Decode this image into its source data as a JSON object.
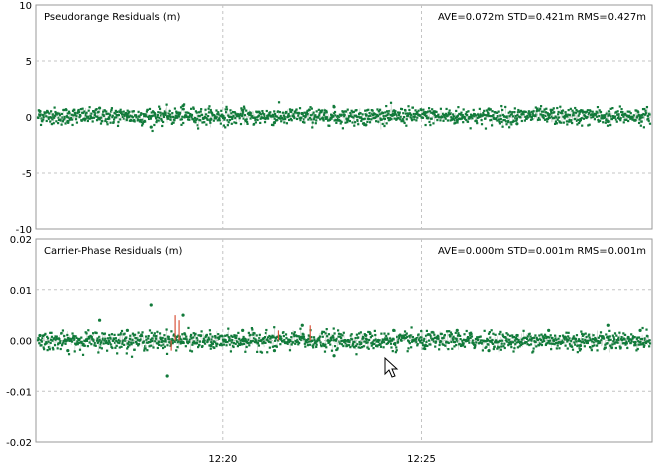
{
  "chart_data": [
    {
      "type": "scatter",
      "title": "Pseudorange Residuals (m)",
      "stats": "AVE=0.072m STD=0.421m RMS=0.427m",
      "ylim": [
        -10,
        10
      ],
      "yticks": [
        10,
        5,
        0,
        -5,
        -10
      ],
      "ytick_labels": [
        "10",
        "5",
        "0",
        "-5",
        "-10"
      ],
      "xticks": [
        20,
        25
      ],
      "xtick_labels": [
        "12:20",
        "12:25"
      ],
      "xlim": [
        15.3,
        30.8
      ],
      "grid": true,
      "series": [
        {
          "color": "#117a3a",
          "mean": 0.072,
          "std": 0.421,
          "rms": 0.427,
          "x": [
            15.4,
            16.1,
            16.9,
            17.6,
            18.2,
            19.0,
            19.7,
            20.5,
            21.3,
            22.0,
            22.8,
            23.6,
            24.3,
            25.1,
            25.9,
            26.7,
            27.4,
            28.2,
            29.0,
            29.7,
            30.5
          ],
          "y": [
            0.5,
            -0.4,
            0.8,
            0.1,
            -0.9,
            1.0,
            -0.2,
            0.6,
            -0.5,
            0.3,
            0.9,
            -0.7,
            0.2,
            0.4,
            -0.3,
            0.7,
            -0.6,
            0.2,
            0.5,
            -0.4,
            0.1
          ]
        }
      ]
    },
    {
      "type": "scatter",
      "title": "Carrier-Phase Residuals (m)",
      "stats": "AVE=0.000m STD=0.001m RMS=0.001m",
      "ylim": [
        -0.02,
        0.02
      ],
      "yticks": [
        0.02,
        0.01,
        0.0,
        -0.01,
        -0.02
      ],
      "ytick_labels": [
        "0.02",
        "0.01",
        "0.00",
        "-0.01",
        "-0.02"
      ],
      "xticks": [
        20,
        25
      ],
      "xtick_labels": [
        "12:20",
        "12:25"
      ],
      "xlim": [
        15.3,
        30.8
      ],
      "grid": true,
      "series": [
        {
          "color": "#117a3a",
          "mean": 0.0,
          "std": 0.001,
          "rms": 0.001,
          "x": [
            15.4,
            16.1,
            16.9,
            17.6,
            18.2,
            18.6,
            19.0,
            19.7,
            20.5,
            21.3,
            22.0,
            22.8,
            23.6,
            24.3,
            25.1,
            25.9,
            26.7,
            27.4,
            28.2,
            29.0,
            29.7,
            30.5
          ],
          "y": [
            0.001,
            -0.002,
            0.004,
            0.002,
            0.007,
            -0.007,
            0.005,
            -0.001,
            0.002,
            -0.002,
            0.003,
            -0.003,
            0.001,
            0.002,
            -0.001,
            0.002,
            -0.002,
            0.001,
            0.002,
            -0.001,
            0.003,
            0.002
          ]
        }
      ]
    }
  ],
  "icons": {
    "cursor": "mouse-pointer-icon"
  }
}
